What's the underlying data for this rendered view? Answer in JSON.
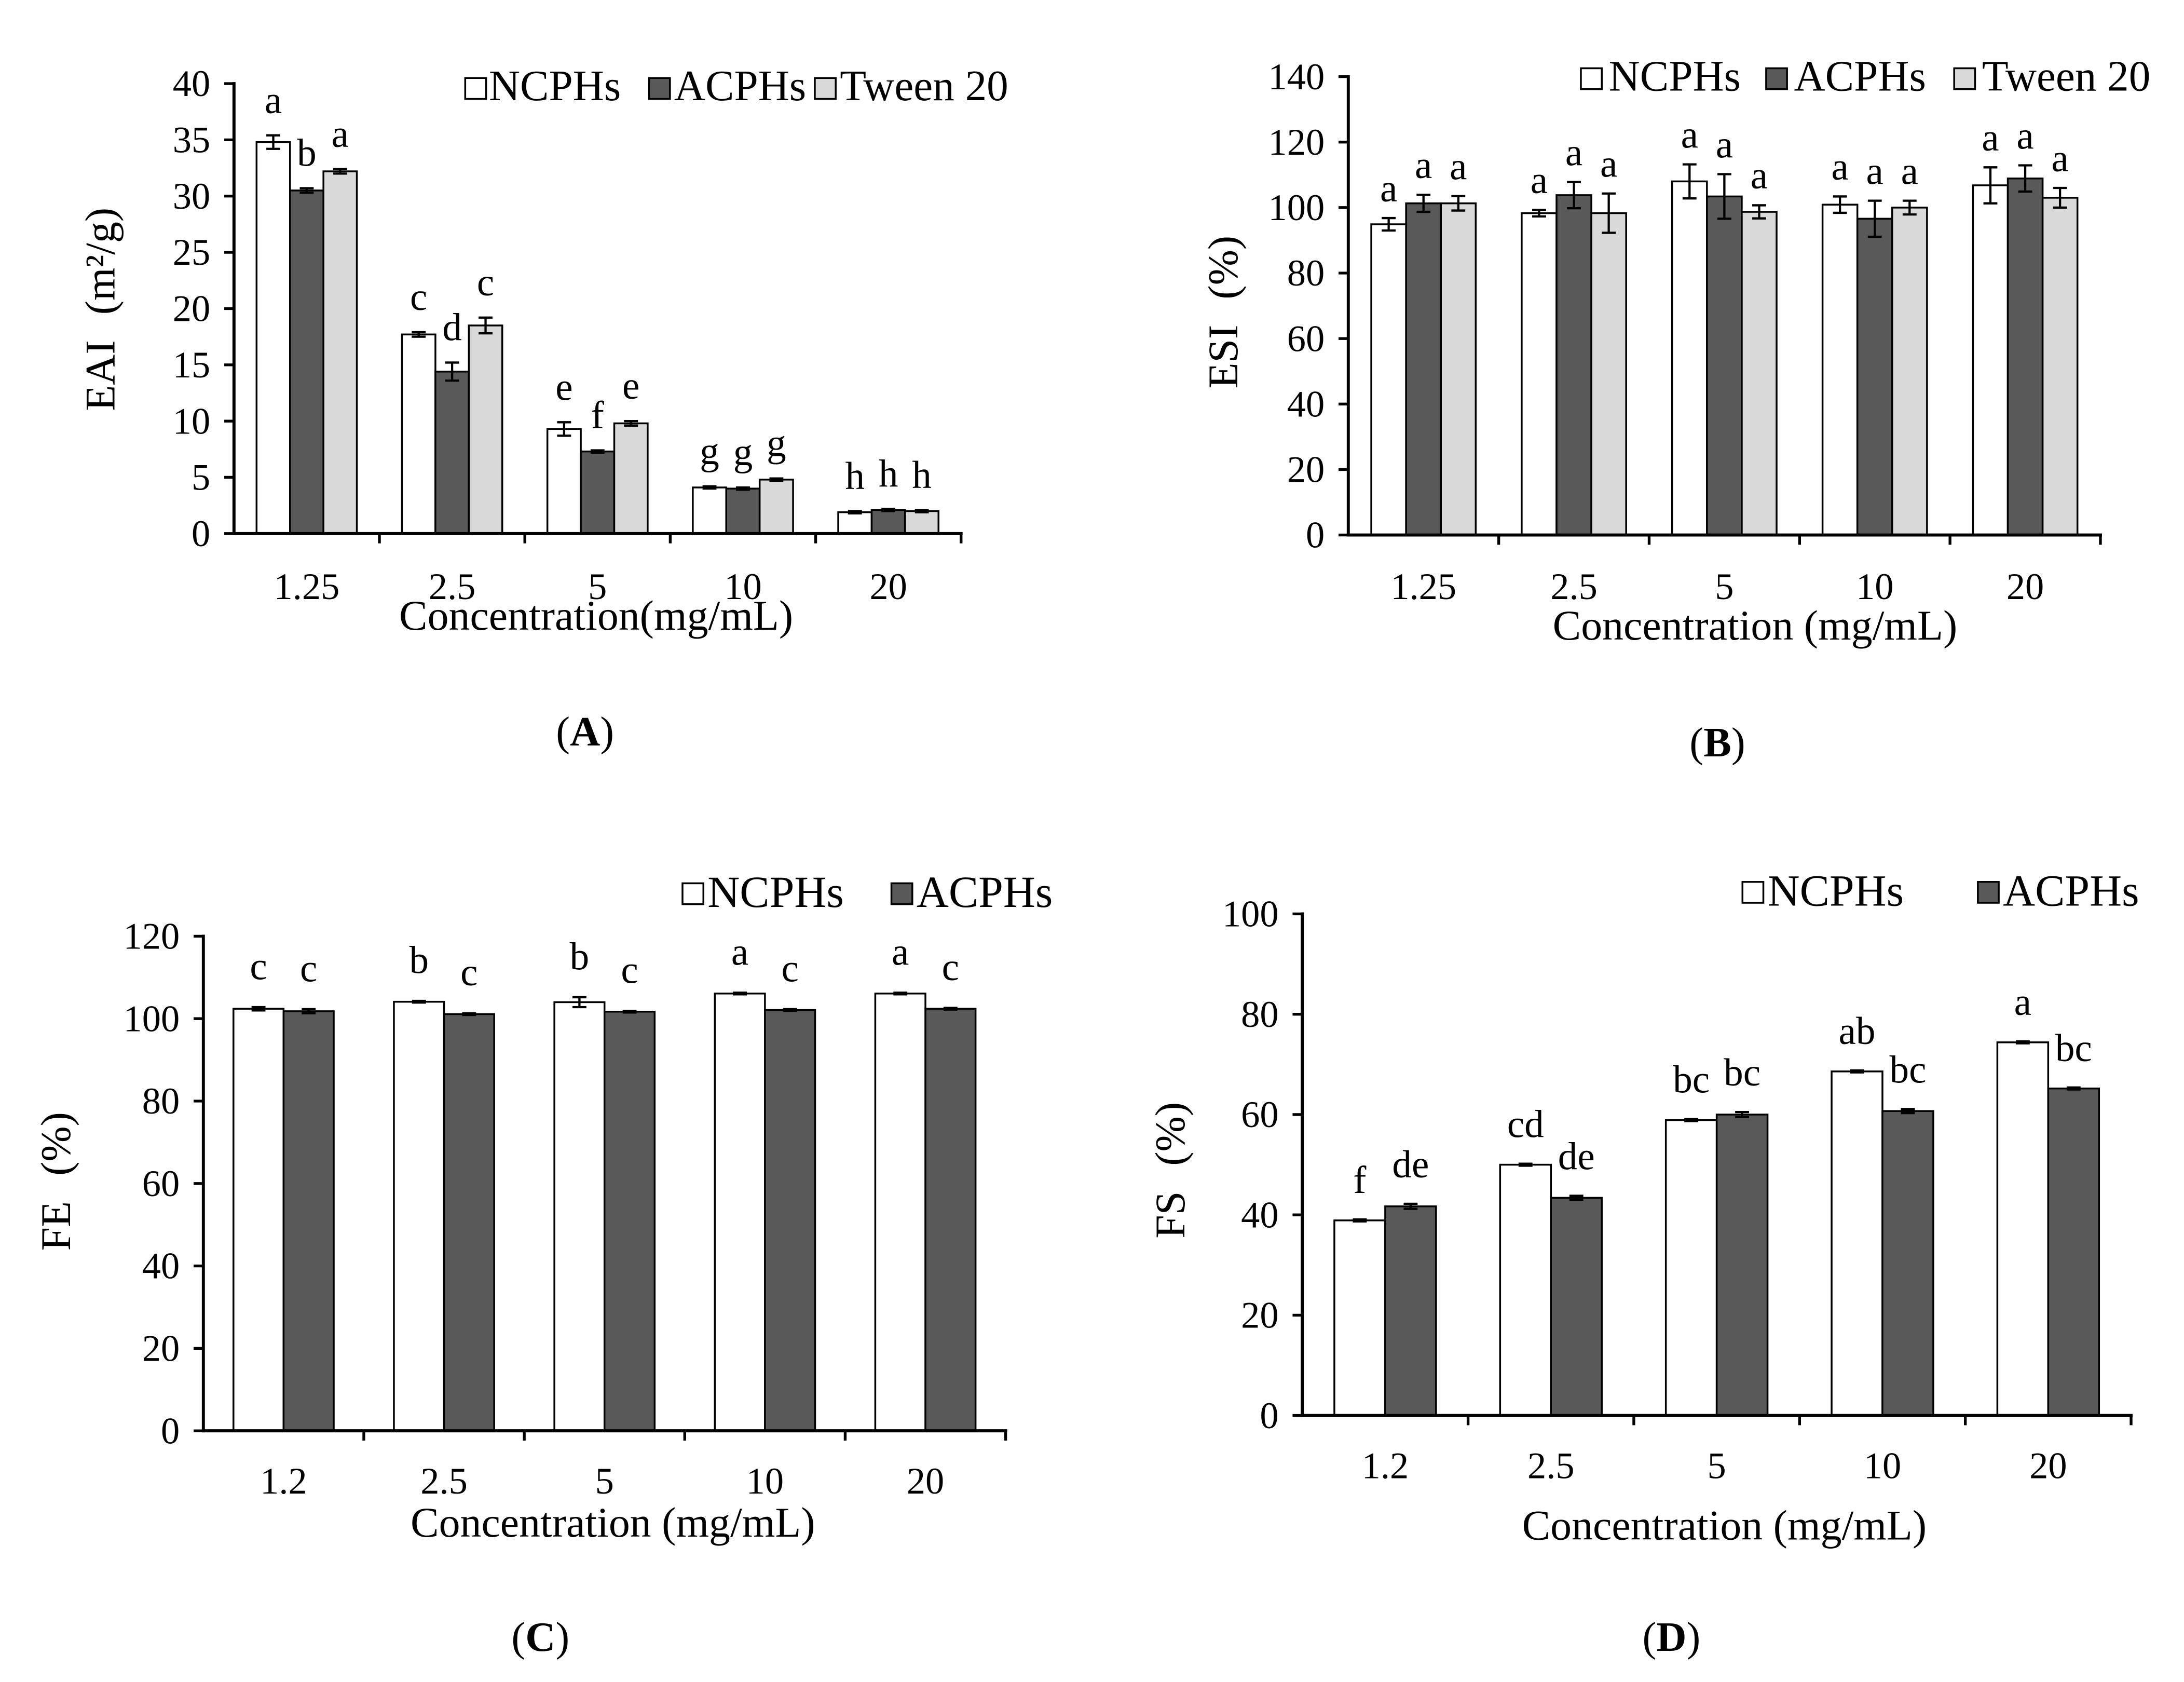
{
  "chart_data": [
    {
      "panel_label": {
        "open": "(",
        "letter": "A",
        "close": ")"
      },
      "type": "bar",
      "xlabel": "Concentration(mg/mL)",
      "ylabel": "EAI (m²/g)",
      "ylim": [
        0,
        40
      ],
      "yticks": [
        0,
        5,
        10,
        15,
        20,
        25,
        30,
        35,
        40
      ],
      "categories": [
        "1.25",
        "2.5",
        "5",
        "10",
        "20"
      ],
      "grid": false,
      "legend_position": "top-right",
      "series": [
        {
          "name": "NCPHs",
          "color": "#ffffff",
          "values": [
            34.8,
            17.7,
            9.3,
            4.1,
            1.9
          ],
          "errors": [
            0.6,
            0.2,
            0.6,
            0.1,
            0.1
          ],
          "letters": [
            "a",
            "c",
            "e",
            "g",
            "h"
          ]
        },
        {
          "name": "ACPHs",
          "color": "#595959",
          "values": [
            30.5,
            14.4,
            7.3,
            4.0,
            2.1
          ],
          "errors": [
            0.2,
            0.8,
            0.1,
            0.1,
            0.1
          ],
          "letters": [
            "b",
            "d",
            "f",
            "g",
            "h"
          ]
        },
        {
          "name": "Tween 20",
          "color": "#d9d9d9",
          "values": [
            32.2,
            18.5,
            9.8,
            4.8,
            2.0
          ],
          "errors": [
            0.2,
            0.7,
            0.2,
            0.1,
            0.1
          ],
          "letters": [
            "a",
            "c",
            "e",
            "g",
            "h"
          ]
        }
      ]
    },
    {
      "panel_label": {
        "open": "(",
        "letter": "B",
        "close": ")"
      },
      "type": "bar",
      "xlabel": "Concentration (mg/mL)",
      "ylabel": "ESI (%)",
      "ylim": [
        0,
        140
      ],
      "yticks": [
        0,
        20,
        40,
        60,
        80,
        100,
        120,
        140
      ],
      "categories": [
        "1.25",
        "2.5",
        "5",
        "10",
        "20"
      ],
      "grid": false,
      "legend_position": "top-right",
      "series": [
        {
          "name": "NCPHs",
          "color": "#ffffff",
          "values": [
            94.9,
            98.3,
            108.0,
            100.9,
            106.8
          ],
          "errors": [
            1.9,
            1.0,
            5.2,
            2.5,
            5.5
          ],
          "letters": [
            "a",
            "a",
            "a",
            "a",
            "a"
          ]
        },
        {
          "name": "ACPHs",
          "color": "#595959",
          "values": [
            101.3,
            103.8,
            103.4,
            96.6,
            108.9
          ],
          "errors": [
            2.6,
            4.0,
            6.8,
            5.5,
            4.0
          ],
          "letters": [
            "a",
            "a",
            "a",
            "a",
            "a"
          ]
        },
        {
          "name": "Tween 20",
          "color": "#d9d9d9",
          "values": [
            101.3,
            98.3,
            98.7,
            100.0,
            103.0
          ],
          "errors": [
            2.2,
            6.0,
            2.0,
            2.1,
            3.0
          ],
          "letters": [
            "a",
            "a",
            "a",
            "a",
            "a"
          ]
        }
      ]
    },
    {
      "panel_label": {
        "open": "(",
        "letter": "C",
        "close": ")"
      },
      "type": "bar",
      "xlabel": "Concentration (mg/mL)",
      "ylabel": "FE (%)",
      "ylim": [
        0,
        120
      ],
      "yticks": [
        0,
        20,
        40,
        60,
        80,
        100,
        120
      ],
      "categories": [
        "1.2",
        "2.5",
        "5",
        "10",
        "20"
      ],
      "grid": false,
      "legend_position": "top-right",
      "series": [
        {
          "name": "NCPHs",
          "color": "#ffffff",
          "values": [
            102.4,
            104.1,
            104.0,
            106.1,
            106.1
          ],
          "errors": [
            0.4,
            0.2,
            1.2,
            0.2,
            0.2
          ],
          "letters": [
            "c",
            "b",
            "b",
            "a",
            "a"
          ]
        },
        {
          "name": "ACPHs",
          "color": "#595959",
          "values": [
            101.8,
            101.1,
            101.7,
            102.1,
            102.4
          ],
          "errors": [
            0.5,
            0.2,
            0.2,
            0.2,
            0.2
          ],
          "letters": [
            "c",
            "c",
            "c",
            "c",
            "c"
          ]
        }
      ]
    },
    {
      "panel_label": {
        "open": "(",
        "letter": "D",
        "close": ")"
      },
      "type": "bar",
      "xlabel": "Concentration (mg/mL)",
      "ylabel": "FS (%)",
      "ylim": [
        0,
        100
      ],
      "yticks": [
        0,
        20,
        40,
        60,
        80,
        100
      ],
      "categories": [
        "1.2",
        "2.5",
        "5",
        "10",
        "20"
      ],
      "grid": false,
      "legend_position": "top-right",
      "series": [
        {
          "name": "NCPHs",
          "color": "#ffffff",
          "values": [
            38.9,
            50.0,
            58.9,
            68.6,
            74.4
          ],
          "errors": [
            0.2,
            0.2,
            0.2,
            0.2,
            0.2
          ],
          "letters": [
            "f",
            "cd",
            "bc",
            "ab",
            "a"
          ]
        },
        {
          "name": "ACPHs",
          "color": "#595959",
          "values": [
            41.7,
            43.4,
            60.0,
            60.7,
            65.2
          ],
          "errors": [
            0.5,
            0.4,
            0.5,
            0.4,
            0.2
          ],
          "letters": [
            "de",
            "de",
            "bc",
            "bc",
            "bc"
          ]
        }
      ]
    }
  ]
}
